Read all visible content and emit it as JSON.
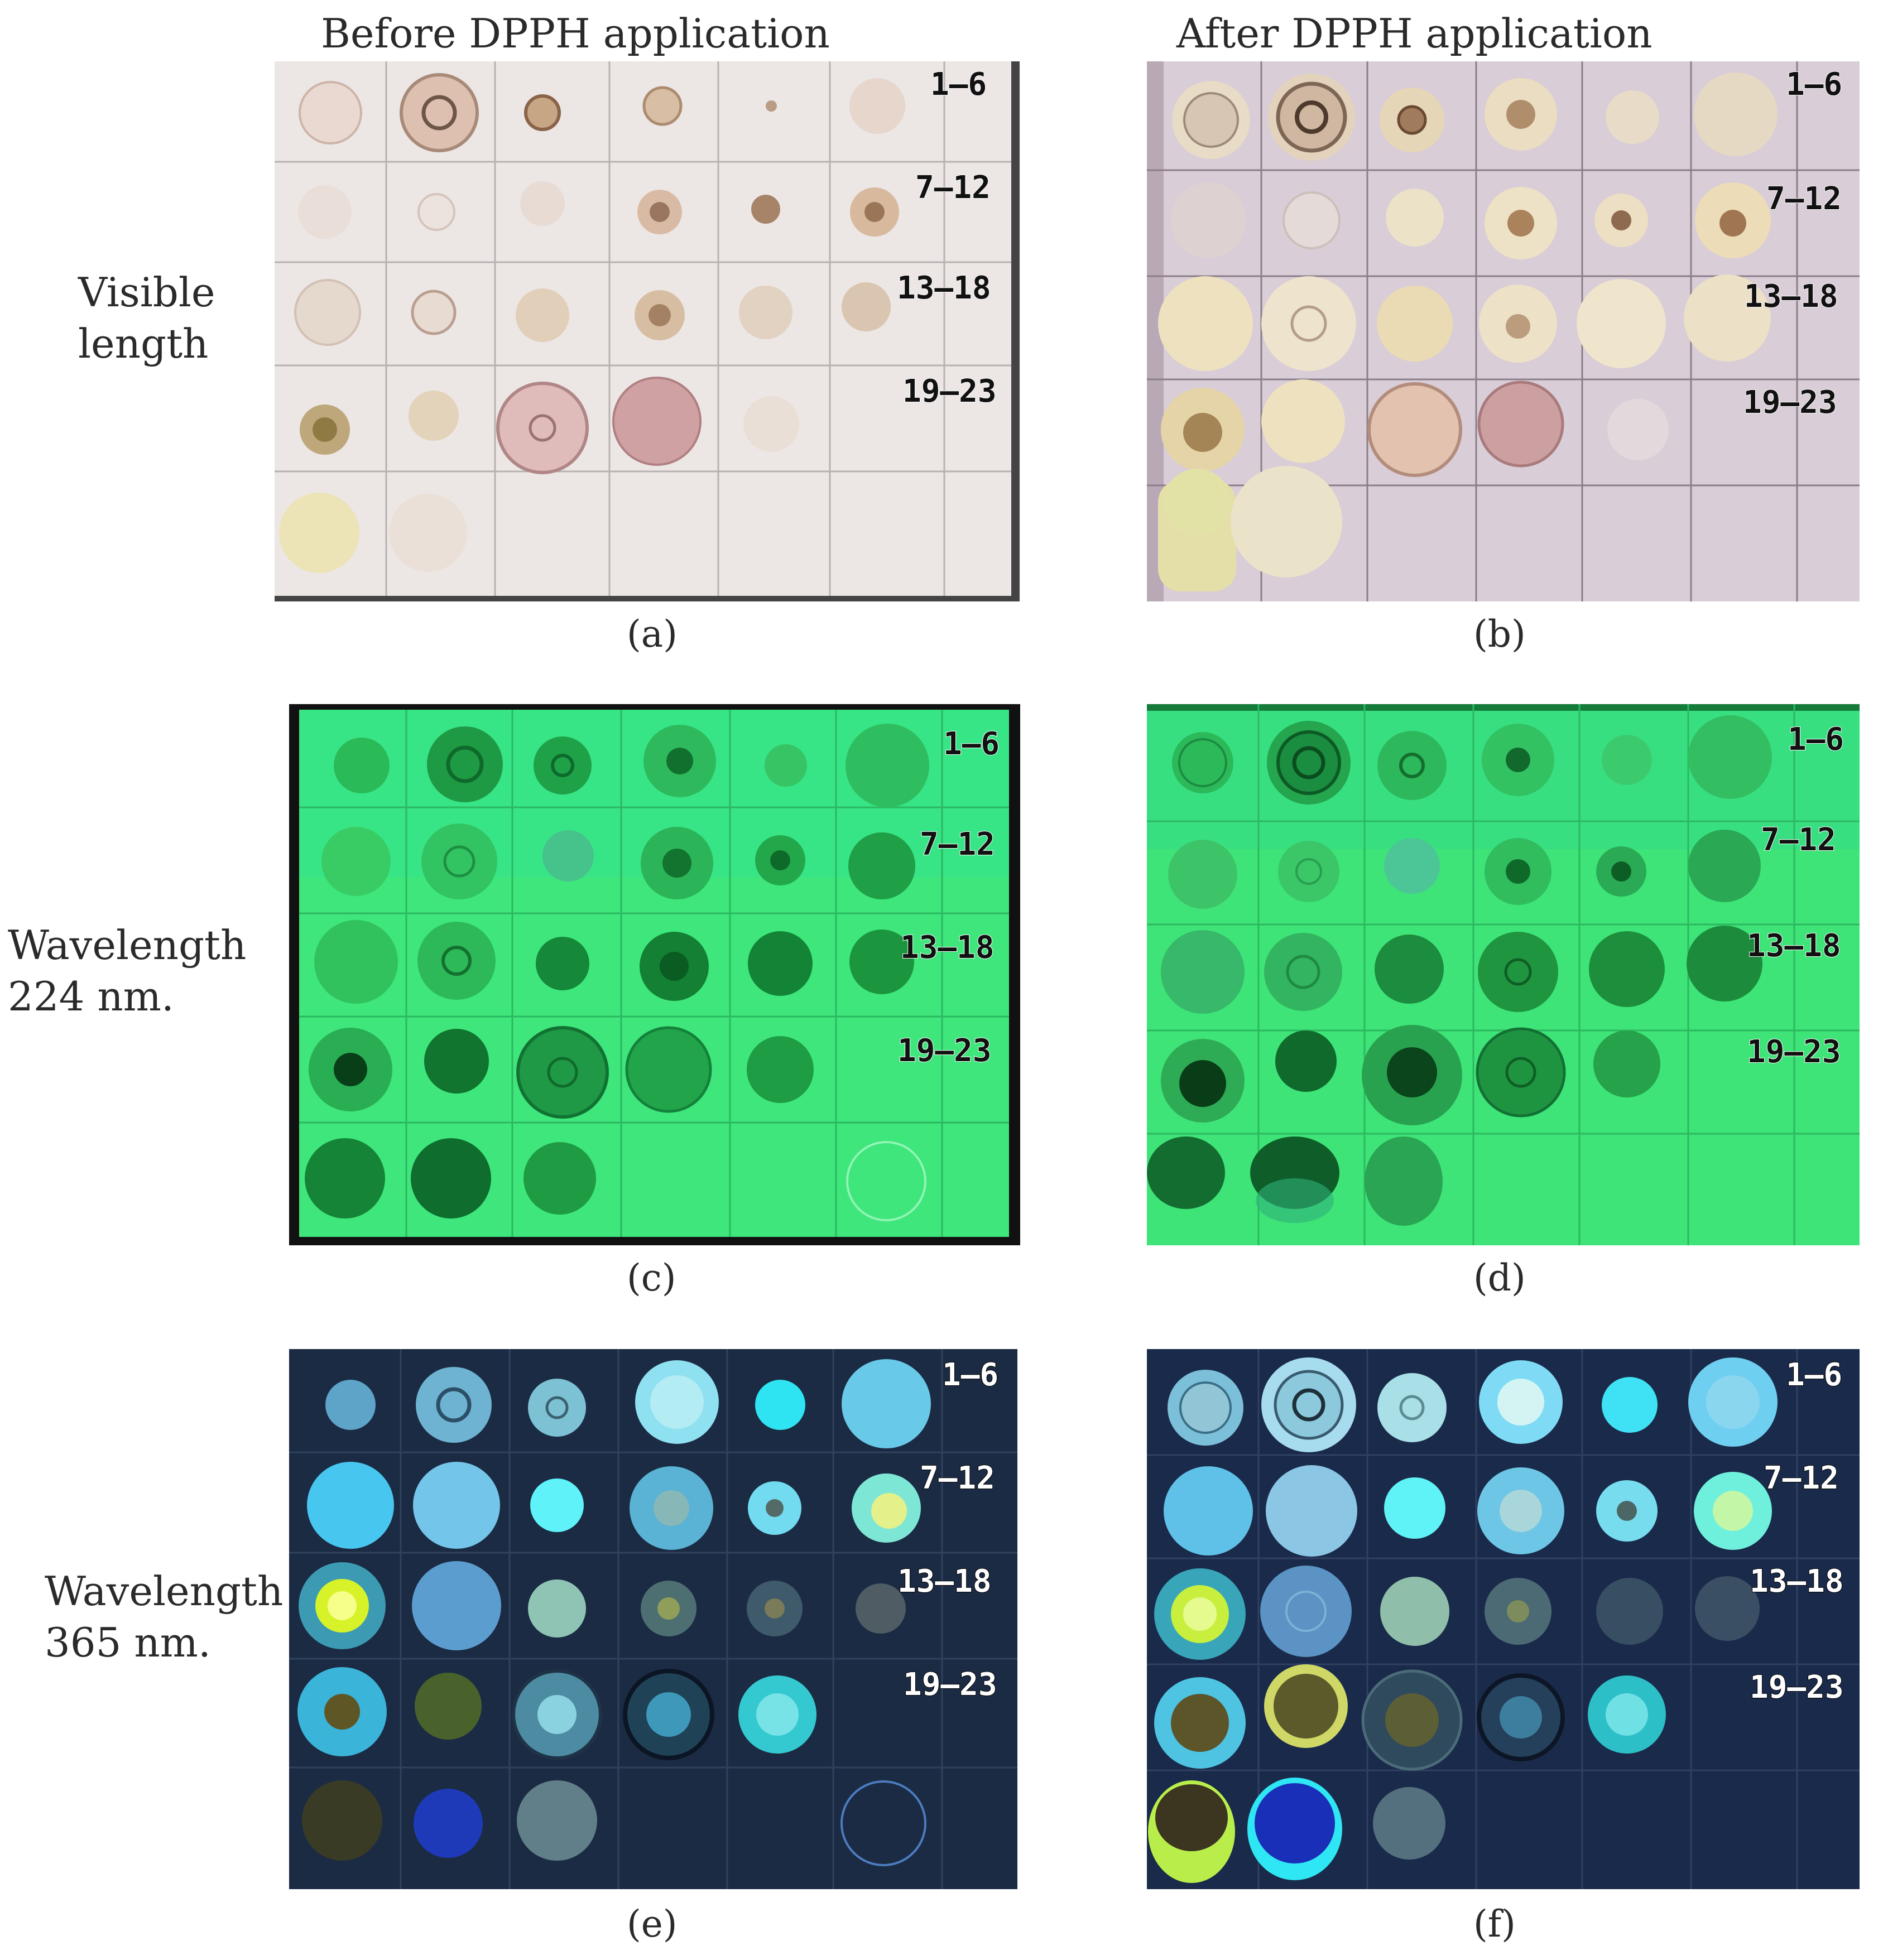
{
  "column_titles": [
    "Before DPPH application",
    "After DPPH application"
  ],
  "row_labels": [
    {
      "line1": "Visible",
      "line2": "length"
    },
    {
      "line1": "Wavelength",
      "line2": "224 nm."
    },
    {
      "line1": "Wavelength",
      "line2": "365 nm."
    }
  ],
  "sample_ranges": [
    "1—6",
    "7—12",
    "13—18",
    "19—23"
  ],
  "panels": [
    {
      "id": "a",
      "caption": "(a)"
    },
    {
      "id": "b",
      "caption": "(b)"
    },
    {
      "id": "c",
      "caption": "(c)"
    },
    {
      "id": "d",
      "caption": "(d)"
    },
    {
      "id": "e",
      "caption": "(e)"
    },
    {
      "id": "f",
      "caption": "(f)"
    }
  ],
  "colors": {
    "visible_plate": "#ece6e4",
    "visible_plate_after": "#d8cdd6",
    "uv224_plate": "#3ee27a",
    "uv365_plate": "#1b2c44"
  }
}
